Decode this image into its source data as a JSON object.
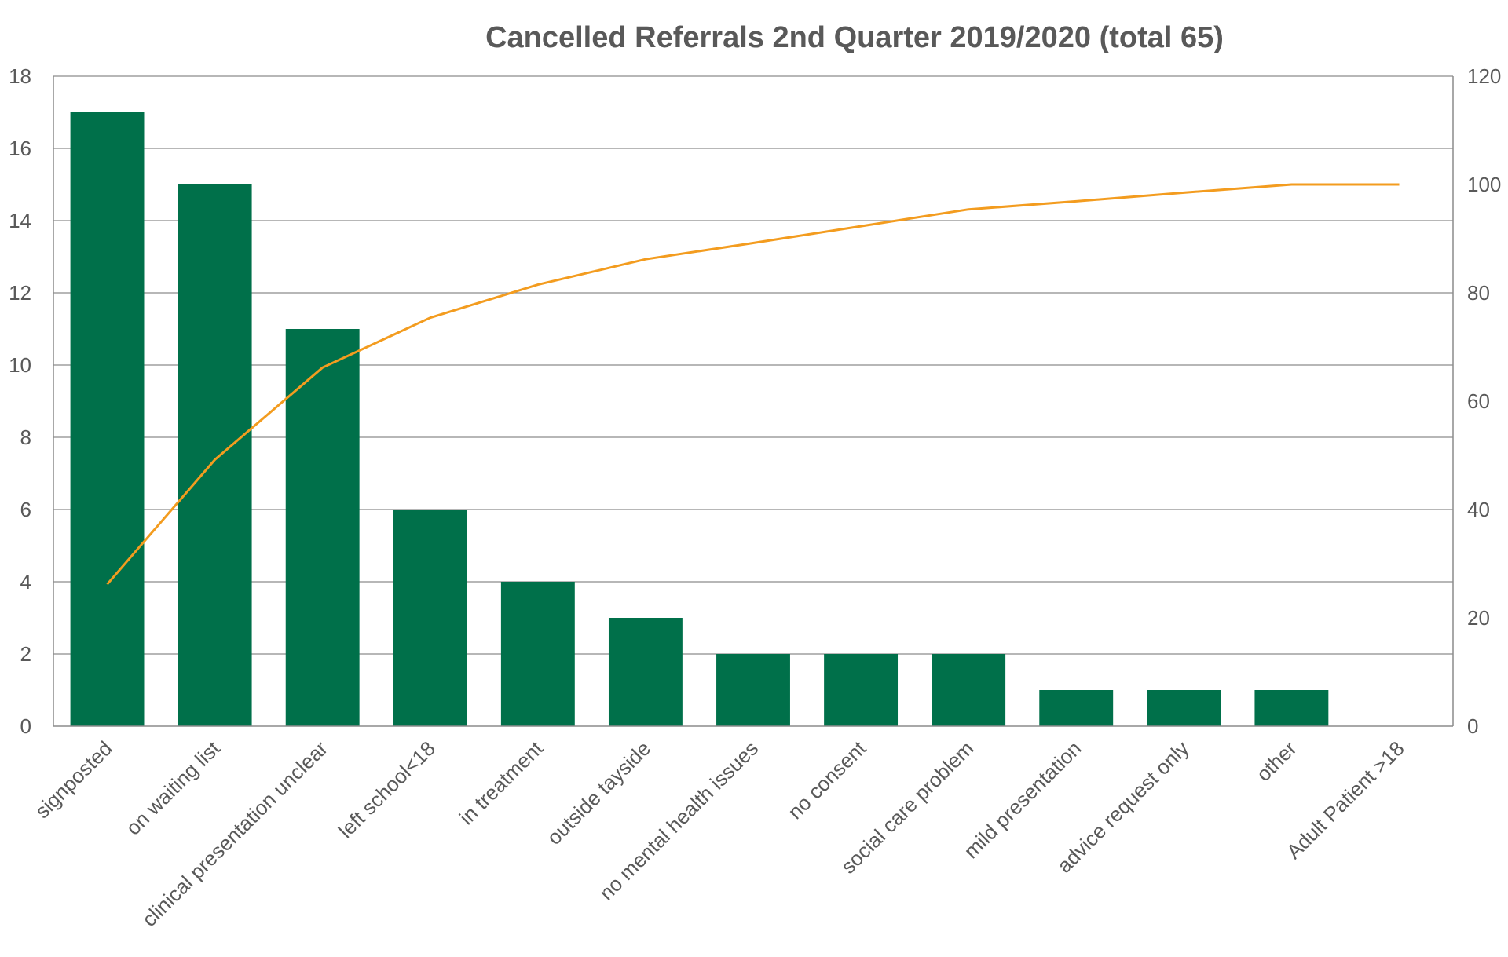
{
  "chart_data": {
    "type": "bar",
    "title": "Cancelled Referrals  2nd Quarter 2019/2020 (total 65)",
    "categories": [
      "signposted",
      "on waiting list",
      "clinical presentation unclear",
      "left school<18",
      "in treatment",
      "outside tayside",
      "no mental health issues",
      "no consent",
      "social care problem",
      "mild presentation",
      "advice request only",
      "other",
      "Adult Patient >18"
    ],
    "series": [
      {
        "type": "bar",
        "axis": "left",
        "color": "#00704A",
        "values": [
          17,
          15,
          11,
          6,
          4,
          3,
          2,
          2,
          2,
          1,
          1,
          1,
          0
        ]
      },
      {
        "type": "line",
        "axis": "right",
        "color": "#F39C1F",
        "values": [
          26.2,
          49.2,
          66.2,
          75.4,
          81.5,
          86.2,
          89.2,
          92.3,
          95.4,
          96.9,
          98.5,
          100,
          100
        ]
      }
    ],
    "y_left": {
      "min": 0,
      "max": 18,
      "step": 2,
      "ticks": [
        "0",
        "2",
        "4",
        "6",
        "8",
        "10",
        "12",
        "14",
        "16",
        "18"
      ]
    },
    "y_right": {
      "min": 0,
      "max": 120,
      "step": 20,
      "ticks": [
        "0",
        "20",
        "40",
        "60",
        "80",
        "100",
        "120"
      ]
    },
    "grid": true,
    "legend": "none"
  }
}
